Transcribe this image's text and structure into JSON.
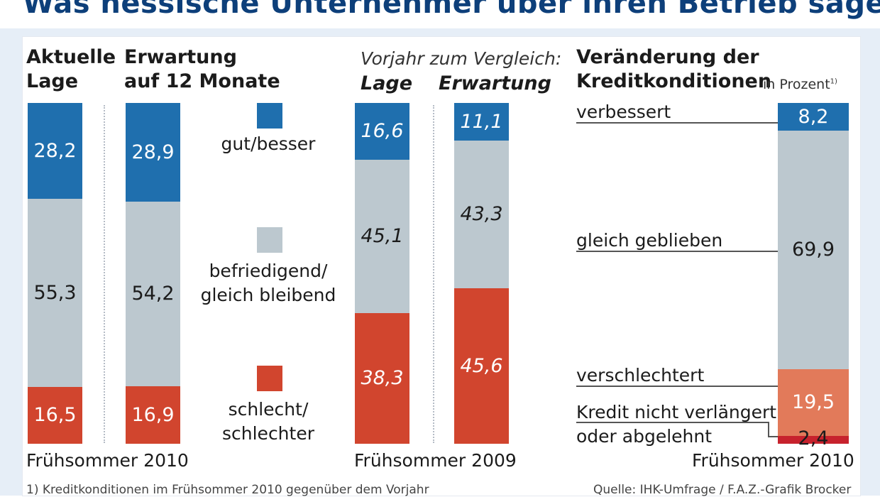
{
  "title": "Was hessische Unternehmer über ihren Betrieb sagen",
  "headers": {
    "aktuelle_lage": "Aktuelle\nLage",
    "erwartung": "Erwartung\nauf 12 Monate",
    "vorjahr": "Vorjahr zum Vergleich:",
    "vorjahr_lage": "Lage",
    "vorjahr_erwartung": "Erwartung",
    "kredit": "Veränderung der\nKreditkonditionen",
    "in_prozent": "in Prozent",
    "footnote_mark": "1)"
  },
  "legend": {
    "good": "gut/besser",
    "neutral": "befriedigend/\ngleich bleibend",
    "bad": "schlecht/\nschlechter"
  },
  "colors": {
    "good": "#1f6fae",
    "neutral": "#bcc8cf",
    "bad": "#d1452e",
    "worse_light": "#e27a5a",
    "not_extended": "#c7222d"
  },
  "chart_data": [
    {
      "type": "bar",
      "stacked": true,
      "title": "Frühsommer 2010",
      "categories": [
        "Aktuelle Lage",
        "Erwartung auf 12 Monate"
      ],
      "series": [
        {
          "name": "gut/besser",
          "values": [
            28.2,
            28.9
          ]
        },
        {
          "name": "befriedigend/gleich bleibend",
          "values": [
            55.3,
            54.2
          ]
        },
        {
          "name": "schlecht/schlechter",
          "values": [
            16.5,
            16.9
          ]
        }
      ]
    },
    {
      "type": "bar",
      "stacked": true,
      "title": "Frühsommer 2009",
      "categories": [
        "Lage",
        "Erwartung"
      ],
      "series": [
        {
          "name": "gut/besser",
          "values": [
            16.6,
            11.1
          ]
        },
        {
          "name": "befriedigend/gleich bleibend",
          "values": [
            45.1,
            43.3
          ]
        },
        {
          "name": "schlecht/schlechter",
          "values": [
            38.3,
            45.6
          ]
        }
      ]
    },
    {
      "type": "bar",
      "stacked": true,
      "title": "Frühsommer 2010",
      "categories": [
        "Veränderung der Kreditkonditionen"
      ],
      "series": [
        {
          "name": "verbessert",
          "values": [
            8.2
          ]
        },
        {
          "name": "gleich geblieben",
          "values": [
            69.9
          ]
        },
        {
          "name": "verschlechtert",
          "values": [
            19.5
          ]
        },
        {
          "name": "Kredit nicht verlängert oder abgelehnt",
          "values": [
            2.4
          ]
        }
      ]
    }
  ],
  "labels": {
    "lage_2010": [
      "28,2",
      "55,3",
      "16,5"
    ],
    "erw_2010": [
      "28,9",
      "54,2",
      "16,9"
    ],
    "lage_2009": [
      "16,6",
      "45,1",
      "38,3"
    ],
    "erw_2009": [
      "11,1",
      "43,3",
      "45,6"
    ],
    "kredit": [
      "8,2",
      "69,9",
      "19,5",
      "2,4"
    ]
  },
  "kredit_categories": {
    "verbessert": "verbessert",
    "gleich": "gleich geblieben",
    "verschlechtert": "verschlechtert",
    "kredit_nicht": "Kredit nicht verlängert",
    "oder": "oder abgelehnt"
  },
  "footers": {
    "left": "Frühsommer 2010",
    "middle": "Frühsommer 2009",
    "right": "Frühsommer 2010",
    "footnote": "1) Kreditkonditionen im Frühsommer 2010 gegenüber dem Vorjahr",
    "source": "Quelle: IHK-Umfrage / F.A.Z.-Grafik Brocker"
  }
}
